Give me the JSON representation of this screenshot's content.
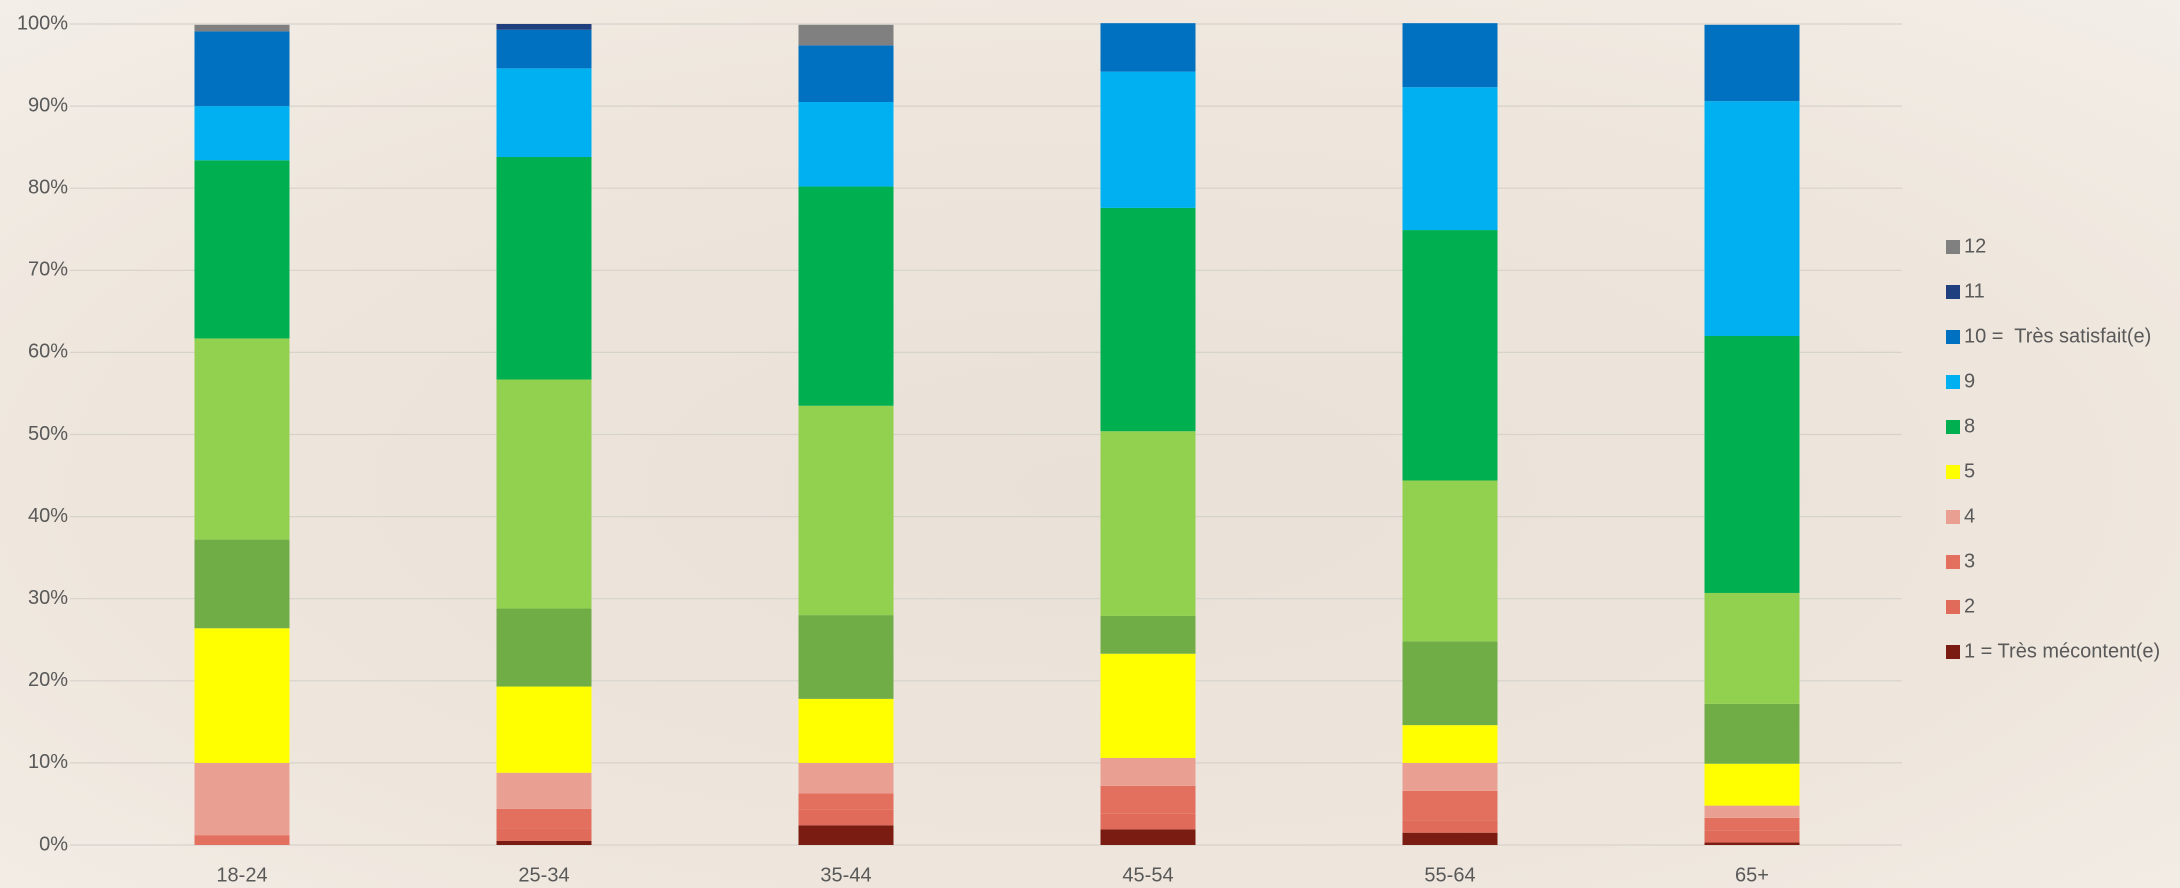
{
  "chart_data": {
    "type": "stacked_bar",
    "categories": [
      "18-24",
      "25-34",
      "35-44",
      "45-54",
      "55-64",
      "65+"
    ],
    "series": [
      {
        "name": "1 = Très mécontent(e)",
        "color": "#7b1c13",
        "values": [
          0,
          0.5,
          2.4,
          1.9,
          1.5,
          0.3
        ]
      },
      {
        "name": "2",
        "color": "#e06b5a",
        "values": [
          0,
          1.5,
          1.9,
          1.9,
          1.5,
          1.5
        ]
      },
      {
        "name": "3",
        "color": "#e3705e",
        "values": [
          1.2,
          2.4,
          2.0,
          3.4,
          3.6,
          1.5
        ]
      },
      {
        "name": "4",
        "color": "#e9a093",
        "values": [
          8.8,
          4.4,
          3.7,
          3.4,
          3.4,
          1.5
        ]
      },
      {
        "name": "5",
        "color": "#ffff00",
        "values": [
          16.4,
          10.5,
          7.8,
          12.7,
          4.6,
          5.1
        ]
      },
      {
        "color": "#70ad47",
        "values": [
          10.8,
          9.5,
          10.2,
          4.6,
          10.2,
          7.3
        ]
      },
      {
        "color": "#92d050",
        "values": [
          24.5,
          27.9,
          25.5,
          22.5,
          19.6,
          13.5
        ]
      },
      {
        "name": "8",
        "color": "#00b050",
        "values": [
          21.7,
          27.1,
          26.7,
          27.2,
          30.5,
          31.3
        ]
      },
      {
        "name": "9",
        "color": "#00b0f0",
        "values": [
          6.6,
          10.8,
          10.3,
          16.6,
          17.4,
          28.6
        ]
      },
      {
        "name": "10 =  Très satisfait(e)",
        "color": "#0070c0",
        "values": [
          9.1,
          4.7,
          6.9,
          5.9,
          7.8,
          9.3
        ]
      },
      {
        "name": "11",
        "color": "#1f3f7f",
        "values": [
          0,
          0.7,
          0,
          0,
          0,
          0
        ]
      },
      {
        "name": "12",
        "color": "#808080",
        "values": [
          0.8,
          0,
          2.5,
          0,
          0,
          0
        ]
      }
    ],
    "ylim": [
      0,
      100
    ],
    "yticks": [
      {
        "value": 0,
        "label": "0%"
      },
      {
        "value": 10,
        "label": "10%"
      },
      {
        "value": 20,
        "label": "20%"
      },
      {
        "value": 30,
        "label": "30%"
      },
      {
        "value": 40,
        "label": "40%"
      },
      {
        "value": 50,
        "label": "50%"
      },
      {
        "value": 60,
        "label": "60%"
      },
      {
        "value": 70,
        "label": "70%"
      },
      {
        "value": 80,
        "label": "80%"
      },
      {
        "value": 90,
        "label": "90%"
      },
      {
        "value": 100,
        "label": "100%"
      }
    ],
    "grid": true,
    "legend": "right"
  }
}
